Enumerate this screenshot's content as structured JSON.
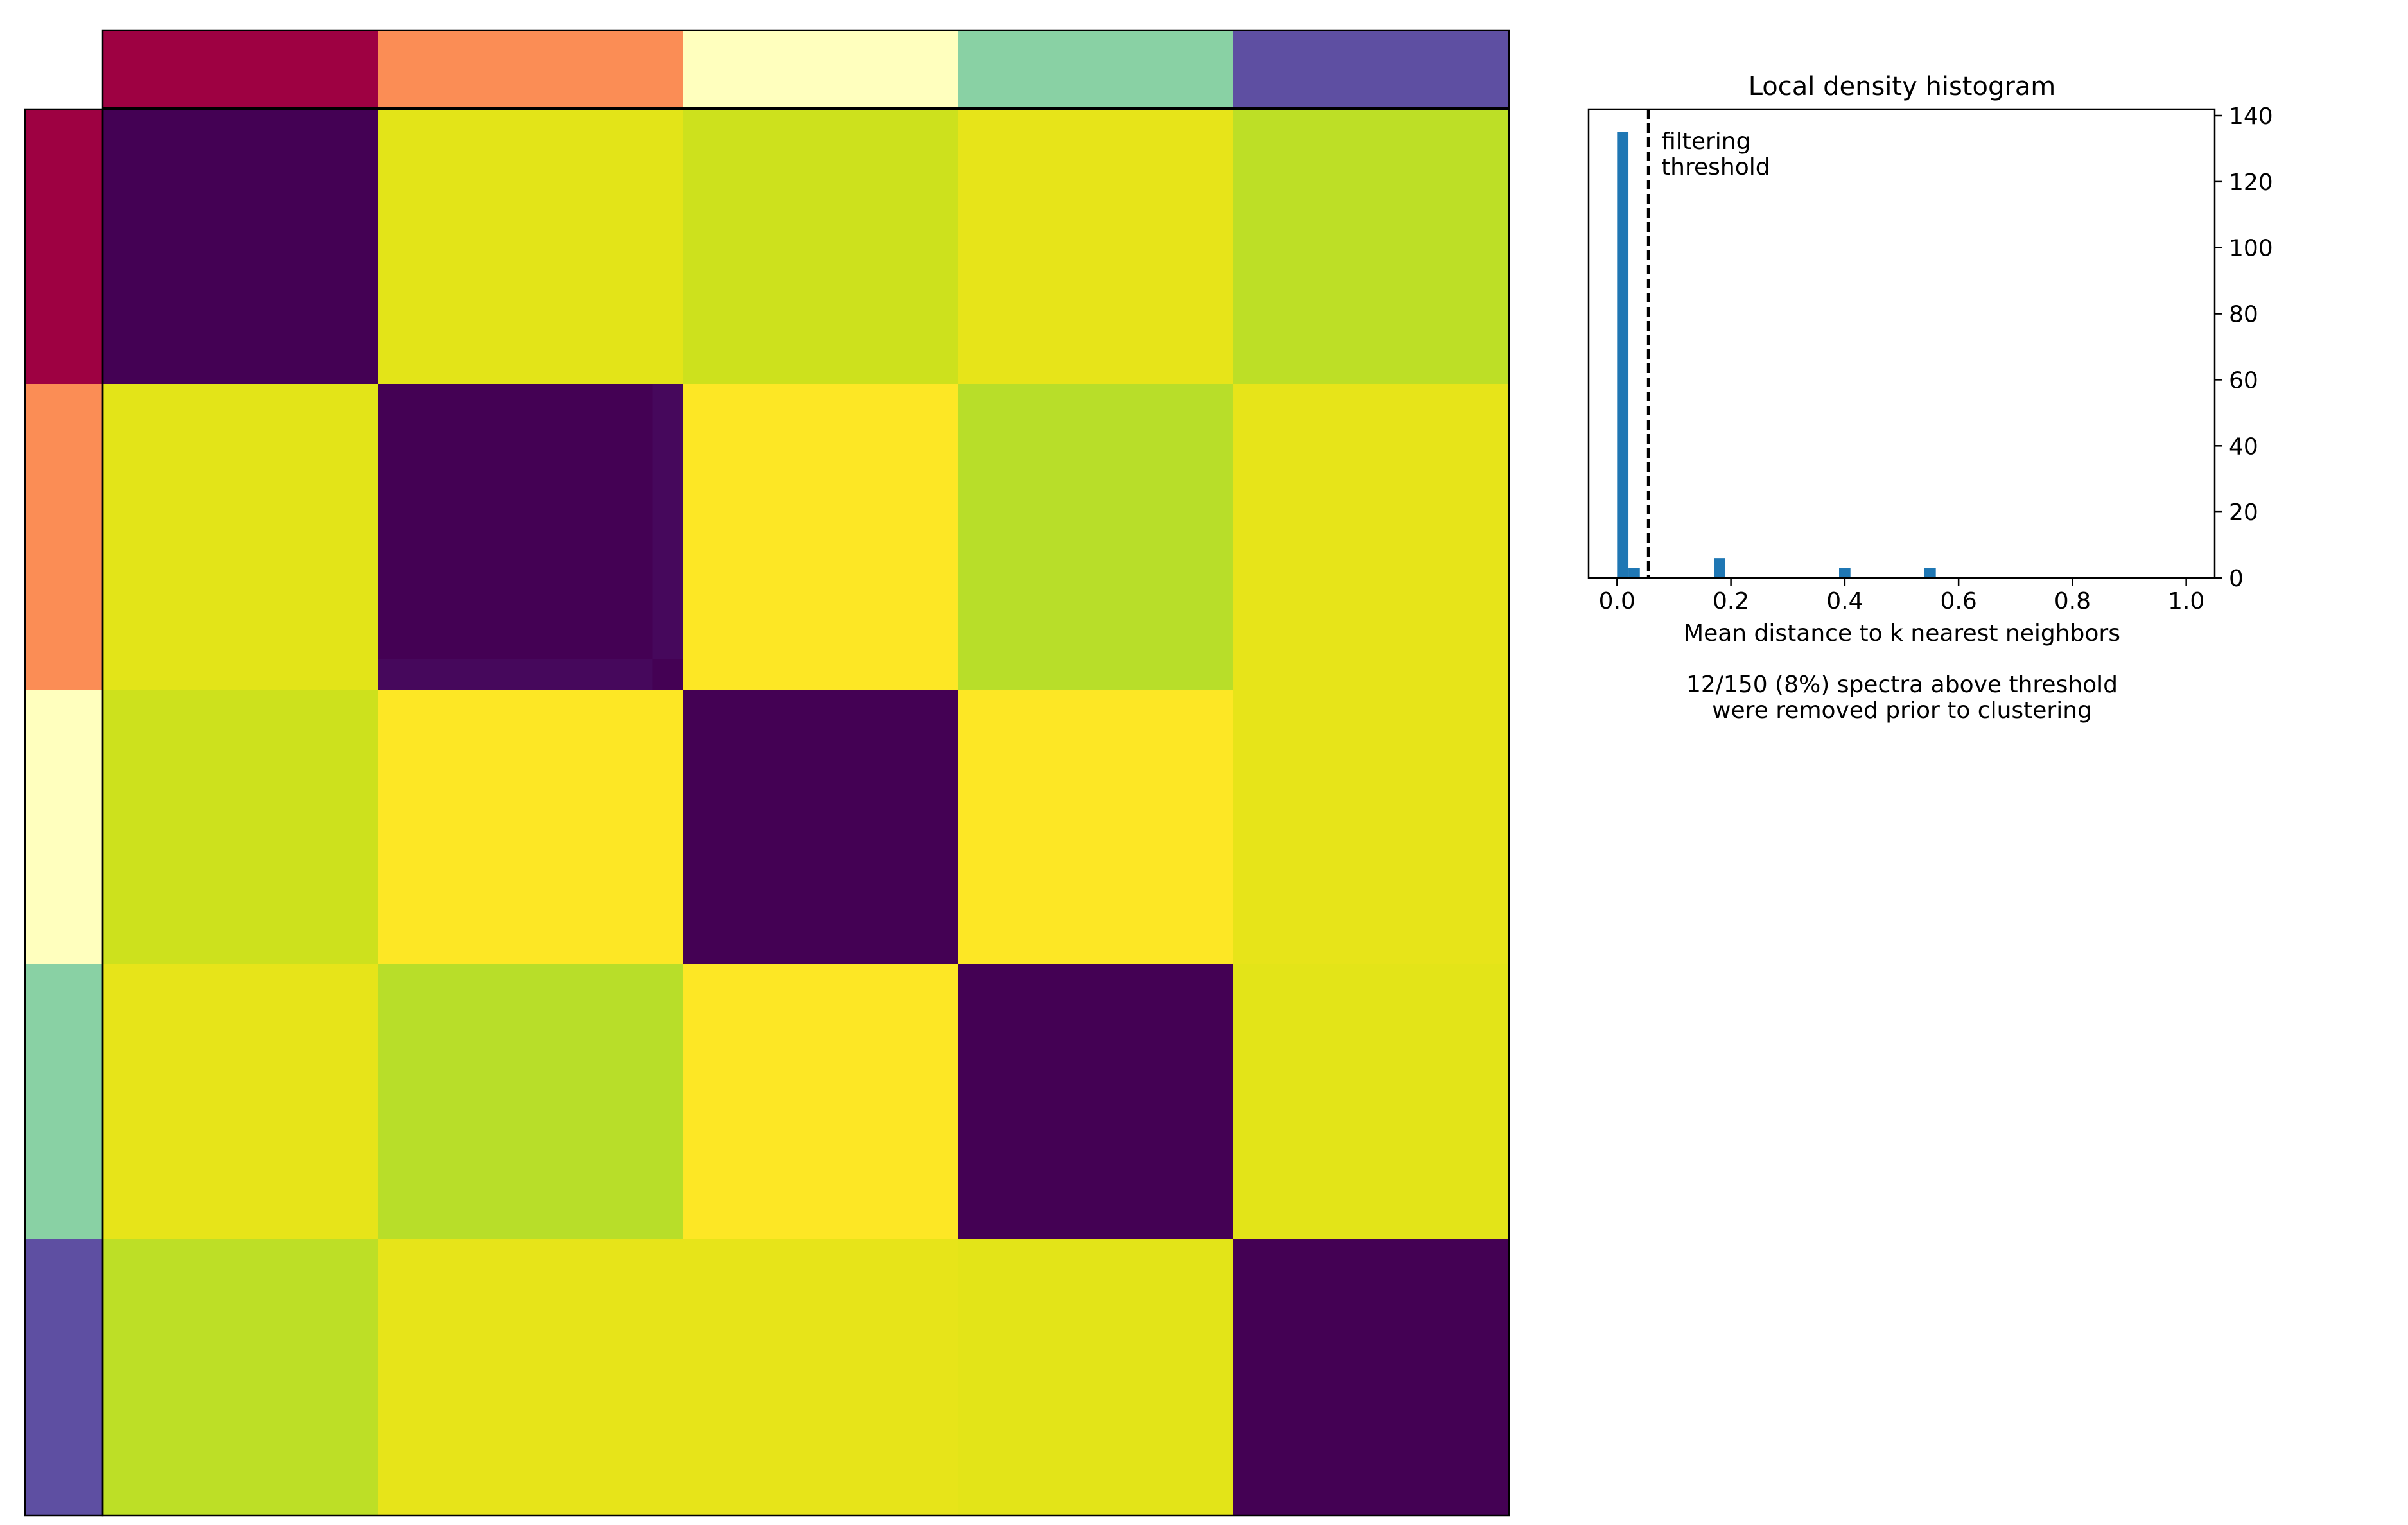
{
  "chart_data": [
    {
      "type": "heatmap",
      "title": "",
      "rows": 5,
      "cols": 5,
      "cluster_colors": [
        "#9e0142",
        "#fb8d55",
        "#ffffbe",
        "#89d1a4",
        "#5e4fa2"
      ],
      "cells": [
        [
          "#440154",
          "#e3e418",
          "#cde11d",
          "#e7e419",
          "#bddf26"
        ],
        [
          "#e3e418",
          "#440154",
          "#fde725",
          "#b8de29",
          "#e7e419"
        ],
        [
          "#cde11d",
          "#fde725",
          "#440154",
          "#fde725",
          "#e7e419"
        ],
        [
          "#e7e419",
          "#b8de29",
          "#fde725",
          "#440154",
          "#e3e418"
        ],
        [
          "#bddf26",
          "#e7e419",
          "#e7e419",
          "#e3e418",
          "#440154"
        ]
      ],
      "sub_cells": [
        {
          "row": 1,
          "col": 1,
          "row_range": [
            0.9,
            1.0
          ],
          "col_range": [
            0.0,
            0.9
          ],
          "color": "#46085c"
        },
        {
          "row": 1,
          "col": 1,
          "row_range": [
            0.0,
            0.9
          ],
          "col_range": [
            0.9,
            1.0
          ],
          "color": "#46085c"
        }
      ]
    },
    {
      "type": "bar",
      "title": "Local density histogram",
      "xlabel": "Mean distance to k nearest neighbors",
      "ylabel": "",
      "xlim": [
        -0.05,
        1.05
      ],
      "ylim": [
        0,
        140
      ],
      "x_ticks": [
        0.0,
        0.2,
        0.4,
        0.6,
        0.8,
        1.0
      ],
      "x_tick_labels": [
        "0.0",
        "0.2",
        "0.4",
        "0.6",
        "0.8",
        "1.0"
      ],
      "y_ticks": [
        0,
        20,
        40,
        60,
        80,
        100,
        120,
        140
      ],
      "y_tick_labels": [
        "0",
        "20",
        "40",
        "60",
        "80",
        "100",
        "120",
        "140"
      ],
      "y_axis_side": "right",
      "bar_color": "#1f77b4",
      "bin_width": 0.02,
      "bins": [
        {
          "x": 0.0,
          "count": 135
        },
        {
          "x": 0.02,
          "count": 3
        },
        {
          "x": 0.17,
          "count": 6
        },
        {
          "x": 0.39,
          "count": 3
        },
        {
          "x": 0.54,
          "count": 3
        }
      ],
      "threshold": 0.055,
      "threshold_label": [
        "filtering",
        "threshold"
      ],
      "footnote": [
        "12/150 (8%) spectra above threshold",
        "were removed prior to clustering"
      ]
    }
  ]
}
